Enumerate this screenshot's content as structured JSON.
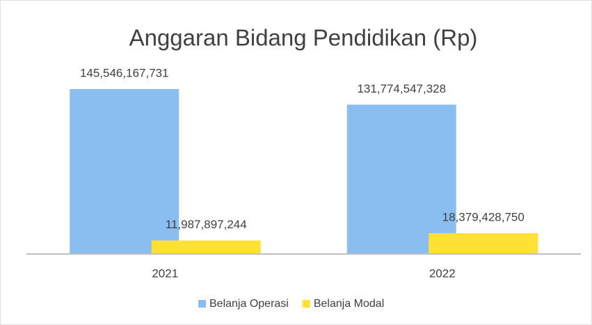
{
  "chart_data": {
    "type": "bar",
    "title": "Anggaran Bidang Pendidikan (Rp)",
    "categories": [
      "2021",
      "2022"
    ],
    "series": [
      {
        "name": "Belanja Operasi",
        "color": "#8bbef0",
        "values": [
          145546167731,
          131774547328
        ],
        "value_labels": [
          "145,546,167,731",
          "131,774,547,328"
        ]
      },
      {
        "name": "Belanja Modal",
        "color": "#ffe135",
        "values": [
          11987897244,
          18379428750
        ],
        "value_labels": [
          "11,987,897,244",
          "18,379,428,750"
        ]
      }
    ],
    "ylim": [
      0,
      160000000000
    ],
    "legend": "bottom"
  }
}
